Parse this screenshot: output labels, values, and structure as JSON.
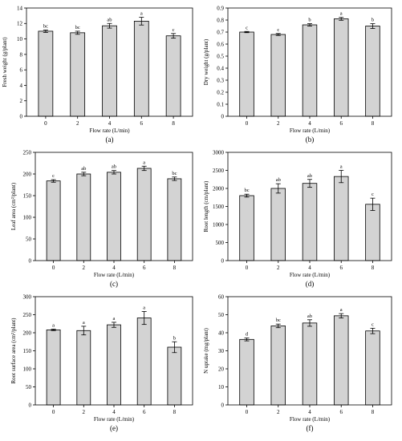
{
  "figure": {
    "panels": [
      "(a)",
      "(b)",
      "(c)",
      "(d)",
      "(e)",
      "(f)"
    ]
  },
  "chart_data": [
    {
      "type": "bar",
      "panel": "(a)",
      "categories": [
        "0",
        "2",
        "4",
        "6",
        "8"
      ],
      "values": [
        11.0,
        10.8,
        11.7,
        12.3,
        10.4
      ],
      "errors": [
        0.15,
        0.2,
        0.3,
        0.5,
        0.3
      ],
      "labels": [
        "bc",
        "bc",
        "ab",
        "a",
        "c"
      ],
      "xlabel": "Flow rate (L/min)",
      "ylabel": "Fresh weight (g/plant)",
      "ylim": [
        0,
        14
      ],
      "yticks": [
        0,
        2,
        4,
        6,
        8,
        10,
        12,
        14
      ],
      "color": "#d3d3d3"
    },
    {
      "type": "bar",
      "panel": "(b)",
      "categories": [
        "0",
        "2",
        "4",
        "6",
        "8"
      ],
      "values": [
        0.7,
        0.68,
        0.76,
        0.81,
        0.75
      ],
      "errors": [
        0.005,
        0.008,
        0.01,
        0.012,
        0.02
      ],
      "labels": [
        "c",
        "c",
        "b",
        "a",
        "b"
      ],
      "xlabel": "Flow rate (L/min)",
      "ylabel": "Dry weight (g/plant)",
      "ylim": [
        0,
        0.9
      ],
      "yticks": [
        0,
        0.1,
        0.2,
        0.3,
        0.4,
        0.5,
        0.6,
        0.7,
        0.8,
        0.9
      ],
      "color": "#d3d3d3"
    },
    {
      "type": "bar",
      "panel": "(c)",
      "categories": [
        "0",
        "2",
        "4",
        "6",
        "8"
      ],
      "values": [
        184,
        200,
        204,
        213,
        189
      ],
      "errors": [
        3,
        4,
        4,
        5,
        4
      ],
      "labels": [
        "c",
        "ab",
        "ab",
        "a",
        "bc"
      ],
      "xlabel": "Flow rate (L/min)",
      "ylabel": "Leaf area (cm²/plant)",
      "ylim": [
        0,
        250
      ],
      "yticks": [
        0,
        50,
        100,
        150,
        200,
        250
      ],
      "color": "#d3d3d3"
    },
    {
      "type": "bar",
      "panel": "(d)",
      "categories": [
        "0",
        "2",
        "4",
        "6",
        "8"
      ],
      "values": [
        1800,
        2000,
        2140,
        2330,
        1560
      ],
      "errors": [
        40,
        130,
        110,
        170,
        170
      ],
      "labels": [
        "bc",
        "ab",
        "ab",
        "a",
        "c"
      ],
      "xlabel": "Flow rate (L/min)",
      "ylabel": "Root length (cm/plant)",
      "ylim": [
        0,
        3000
      ],
      "yticks": [
        0,
        500,
        1000,
        1500,
        2000,
        2500,
        3000
      ],
      "color": "#d3d3d3"
    },
    {
      "type": "bar",
      "panel": "(e)",
      "categories": [
        "0",
        "2",
        "4",
        "6",
        "8"
      ],
      "values": [
        208,
        206,
        222,
        241,
        160
      ],
      "errors": [
        2,
        12,
        7,
        18,
        15
      ],
      "labels": [
        "a",
        "a",
        "a",
        "a",
        "b"
      ],
      "xlabel": "Flow rate (L/min)",
      "ylabel": "Root surface area (cm²/plant)",
      "ylim": [
        0,
        300
      ],
      "yticks": [
        0,
        50,
        100,
        150,
        200,
        250,
        300
      ],
      "color": "#d3d3d3"
    },
    {
      "type": "bar",
      "panel": "(f)",
      "categories": [
        "0",
        "2",
        "4",
        "6",
        "8"
      ],
      "values": [
        36.3,
        43.8,
        45.4,
        49.4,
        41.0
      ],
      "errors": [
        0.8,
        1.0,
        1.8,
        1.2,
        1.5
      ],
      "labels": [
        "d",
        "bc",
        "ab",
        "a",
        "c"
      ],
      "xlabel": "Flow rate (L/min)",
      "ylabel": "N uptake (mg/plant)",
      "ylim": [
        0,
        60
      ],
      "yticks": [
        0,
        10,
        20,
        30,
        40,
        50,
        60
      ],
      "color": "#d3d3d3"
    }
  ]
}
